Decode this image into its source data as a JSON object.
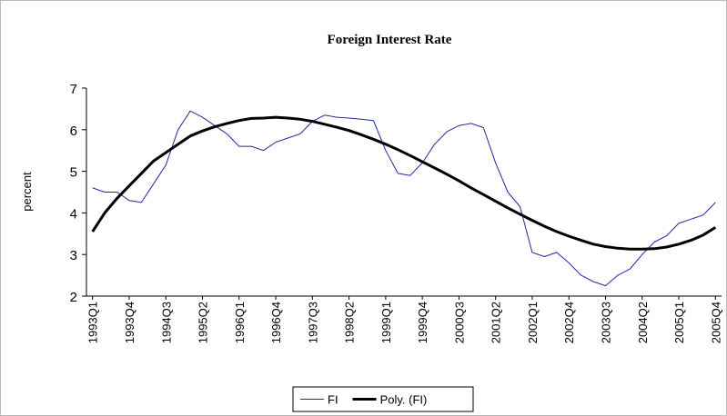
{
  "chart_data": {
    "type": "line",
    "title": "Foreign Interest Rate",
    "y_label": "percent",
    "categories": [
      "1993Q1",
      null,
      null,
      "1993Q4",
      null,
      null,
      "1994Q3",
      null,
      null,
      "1995Q2",
      null,
      null,
      "1996Q1",
      null,
      null,
      "1996Q4",
      null,
      null,
      "1997Q3",
      null,
      null,
      "1998Q2",
      null,
      null,
      "1999Q1",
      null,
      null,
      "1999Q4",
      null,
      null,
      "2000Q3",
      null,
      null,
      "2001Q2",
      null,
      null,
      "2002Q1",
      null,
      null,
      "2002Q4",
      null,
      null,
      "2003Q3",
      null,
      null,
      "2004Q2",
      null,
      null,
      "2005Q1",
      null,
      null,
      "2005Q4"
    ],
    "series": [
      {
        "name": "FI",
        "color": "#1f2b9e",
        "values": [
          4.6,
          4.5,
          4.5,
          4.3,
          4.25,
          4.7,
          5.15,
          6.0,
          6.45,
          6.3,
          6.1,
          5.9,
          5.6,
          5.6,
          5.5,
          5.7,
          5.8,
          5.9,
          6.2,
          6.35,
          6.3,
          6.28,
          6.25,
          6.22,
          5.5,
          4.95,
          4.9,
          5.2,
          5.65,
          5.95,
          6.1,
          6.15,
          6.05,
          5.2,
          4.5,
          4.15,
          3.05,
          2.95,
          3.05,
          2.8,
          2.5,
          2.35,
          2.25,
          2.5,
          2.65,
          3.0,
          3.3,
          3.45,
          3.75,
          3.85,
          3.95,
          4.25
        ]
      },
      {
        "name": "Poly. (FI)",
        "color": "#000000",
        "values": [
          3.55,
          4.0,
          4.35,
          4.65,
          4.95,
          5.25,
          5.45,
          5.65,
          5.85,
          5.97,
          6.07,
          6.15,
          6.22,
          6.27,
          6.28,
          6.3,
          6.28,
          6.25,
          6.2,
          6.13,
          6.06,
          5.98,
          5.88,
          5.77,
          5.65,
          5.52,
          5.38,
          5.23,
          5.08,
          4.93,
          4.77,
          4.6,
          4.44,
          4.28,
          4.12,
          3.97,
          3.82,
          3.68,
          3.55,
          3.44,
          3.34,
          3.25,
          3.19,
          3.15,
          3.13,
          3.13,
          3.14,
          3.18,
          3.25,
          3.34,
          3.47,
          3.65
        ]
      }
    ],
    "ylim": [
      2,
      7
    ],
    "yticks": [
      2,
      3,
      4,
      5,
      6,
      7
    ],
    "grid": false,
    "legend": "bottom"
  }
}
